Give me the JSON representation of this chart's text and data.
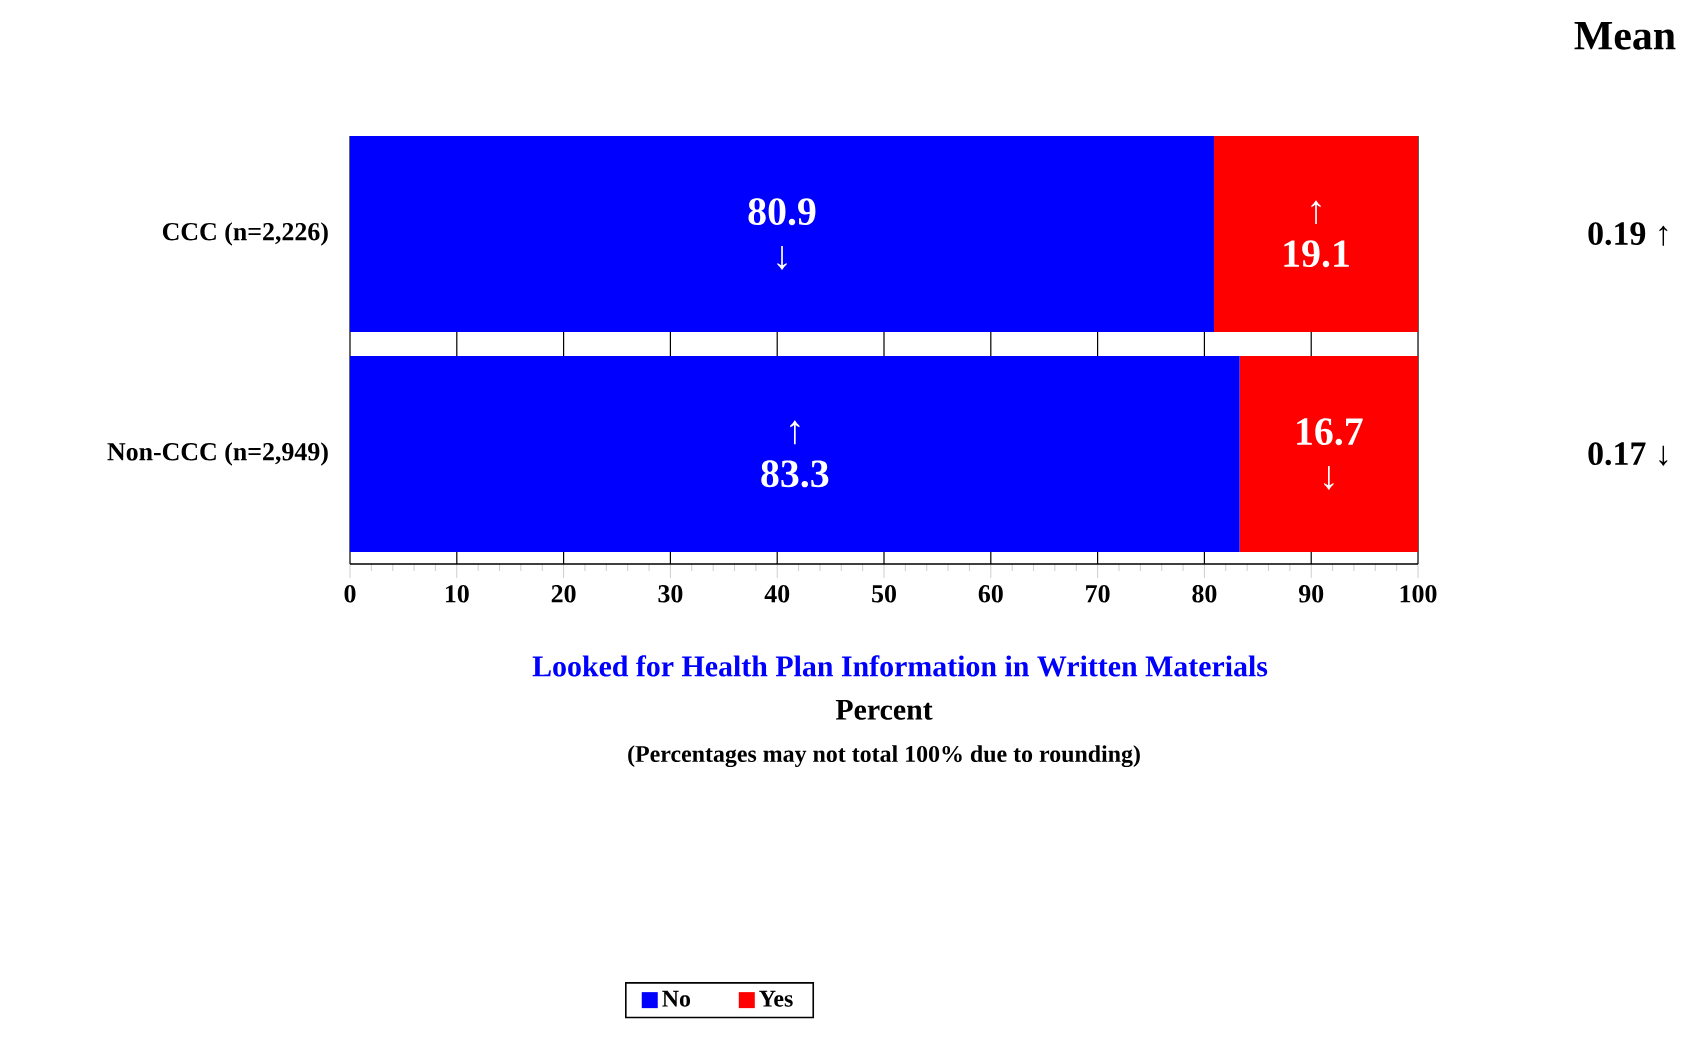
{
  "chart_data": {
    "type": "bar",
    "orientation": "horizontal",
    "stacked": true,
    "title": "Looked for Health Plan Information in Written Materials",
    "xlabel": "Percent",
    "categories": [
      "CCC (n=2,226)",
      "Non-CCC (n=2,949)"
    ],
    "series": [
      {
        "name": "No",
        "color": "#0000ff",
        "values": [
          80.9,
          83.3
        ],
        "value_labels": [
          "80.9 ↓",
          "↑ 83.3"
        ]
      },
      {
        "name": "Yes",
        "color": "#ff0000",
        "values": [
          19.1,
          16.7
        ],
        "value_labels": [
          "↑ 19.1",
          "16.7 ↓"
        ]
      }
    ],
    "xlim": [
      0,
      100
    ],
    "xticks": [
      0,
      10,
      20,
      30,
      40,
      50,
      60,
      70,
      80,
      90,
      100
    ],
    "grid": "x",
    "legend": "bottom",
    "annotations": [
      "(Percentages may not total 100% due to rounding)",
      "Mean",
      "0.19 ↑",
      "0.17 ↓"
    ]
  }
}
